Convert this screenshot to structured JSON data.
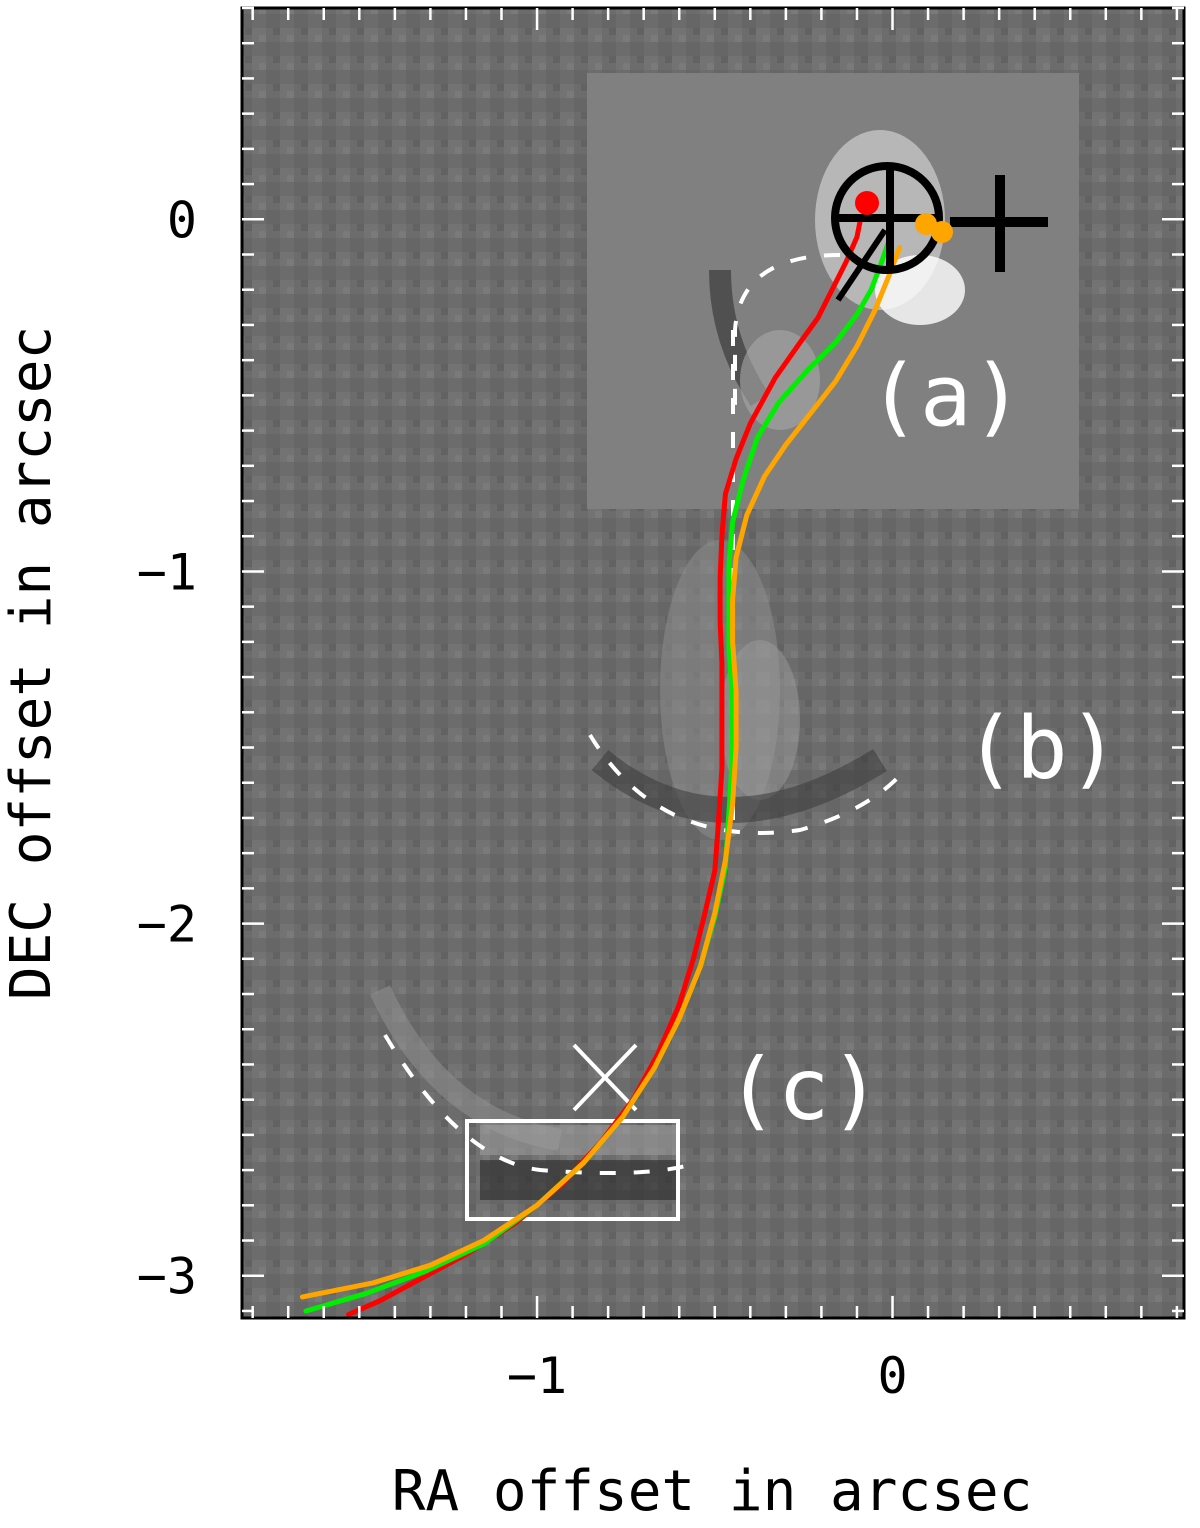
{
  "chart_data": {
    "type": "line",
    "xlabel": "RA offset in arcsec",
    "ylabel": "DEC offset in arcsec",
    "xlim": [
      -1.83,
      0.82
    ],
    "ylim": [
      -3.12,
      0.6
    ],
    "x_ticks": [
      {
        "value": -1,
        "label": "−1"
      },
      {
        "value": 0,
        "label": "0"
      }
    ],
    "y_ticks": [
      {
        "value": 0,
        "label": "0"
      },
      {
        "value": -1,
        "label": "−1"
      },
      {
        "value": -2,
        "label": "−2"
      },
      {
        "value": -3,
        "label": "−3"
      }
    ],
    "region_labels": [
      {
        "label": "(a)",
        "x": 0.15,
        "y": -0.5
      },
      {
        "label": "(b)",
        "x": 0.42,
        "y": -1.5
      },
      {
        "label": "(c)",
        "x": -0.25,
        "y": -2.47
      }
    ],
    "series": [
      {
        "color": "#ff0000",
        "x": [
          -0.09,
          -0.1,
          -0.13,
          -0.17,
          -0.21,
          -0.26,
          -0.33,
          -0.4,
          -0.44,
          -0.47,
          -0.48,
          -0.485,
          -0.485,
          -0.48,
          -0.48,
          -0.48,
          -0.49,
          -0.5,
          -0.53,
          -0.56,
          -0.6,
          -0.66,
          -0.73,
          -0.82,
          -0.93,
          -1.06,
          -1.2,
          -1.33,
          -1.44,
          -1.53
        ],
        "y": [
          0,
          -0.05,
          -0.12,
          -0.2,
          -0.28,
          -0.35,
          -0.45,
          -0.58,
          -0.68,
          -0.78,
          -0.9,
          -1.02,
          -1.14,
          -1.26,
          -1.4,
          -1.56,
          -1.72,
          -1.85,
          -1.98,
          -2.1,
          -2.23,
          -2.37,
          -2.5,
          -2.62,
          -2.74,
          -2.85,
          -2.94,
          -3.01,
          -3.07,
          -3.11
        ]
      },
      {
        "color": "#00ee00",
        "x": [
          -0.01,
          -0.03,
          -0.06,
          -0.1,
          -0.16,
          -0.24,
          -0.32,
          -0.38,
          -0.42,
          -0.45,
          -0.46,
          -0.46,
          -0.46,
          -0.45,
          -0.45,
          -0.46,
          -0.47,
          -0.5,
          -0.54,
          -0.6,
          -0.67,
          -0.76,
          -0.87,
          -1.0,
          -1.15,
          -1.32,
          -1.48,
          -1.65
        ],
        "y": [
          -0.06,
          -0.12,
          -0.2,
          -0.27,
          -0.35,
          -0.43,
          -0.52,
          -0.62,
          -0.74,
          -0.86,
          -0.98,
          -1.1,
          -1.22,
          -1.36,
          -1.52,
          -1.68,
          -1.84,
          -1.98,
          -2.12,
          -2.27,
          -2.41,
          -2.55,
          -2.68,
          -2.8,
          -2.91,
          -2.99,
          -3.05,
          -3.1
        ]
      },
      {
        "color": "#ffa500",
        "x": [
          0.02,
          -0.01,
          -0.05,
          -0.1,
          -0.16,
          -0.23,
          -0.3,
          -0.36,
          -0.41,
          -0.44,
          -0.45,
          -0.45,
          -0.44,
          -0.44,
          -0.45,
          -0.47,
          -0.5,
          -0.54,
          -0.6,
          -0.67,
          -0.76,
          -0.87,
          -1.0,
          -1.15,
          -1.3,
          -1.46,
          -1.66
        ],
        "y": [
          -0.08,
          -0.16,
          -0.26,
          -0.36,
          -0.46,
          -0.55,
          -0.64,
          -0.73,
          -0.84,
          -0.96,
          -1.08,
          -1.2,
          -1.34,
          -1.5,
          -1.66,
          -1.82,
          -1.97,
          -2.12,
          -2.27,
          -2.41,
          -2.55,
          -2.68,
          -2.8,
          -2.9,
          -2.97,
          -3.02,
          -3.06
        ]
      }
    ]
  },
  "overlays": {
    "image_grey_hex": "#6e6e6e",
    "inset_grey_hex": "#808080",
    "marker_red": "#ff0000",
    "marker_orange": "#ffa500",
    "ring_color": "#000000",
    "dashed_arc_color": "#ffffff"
  }
}
